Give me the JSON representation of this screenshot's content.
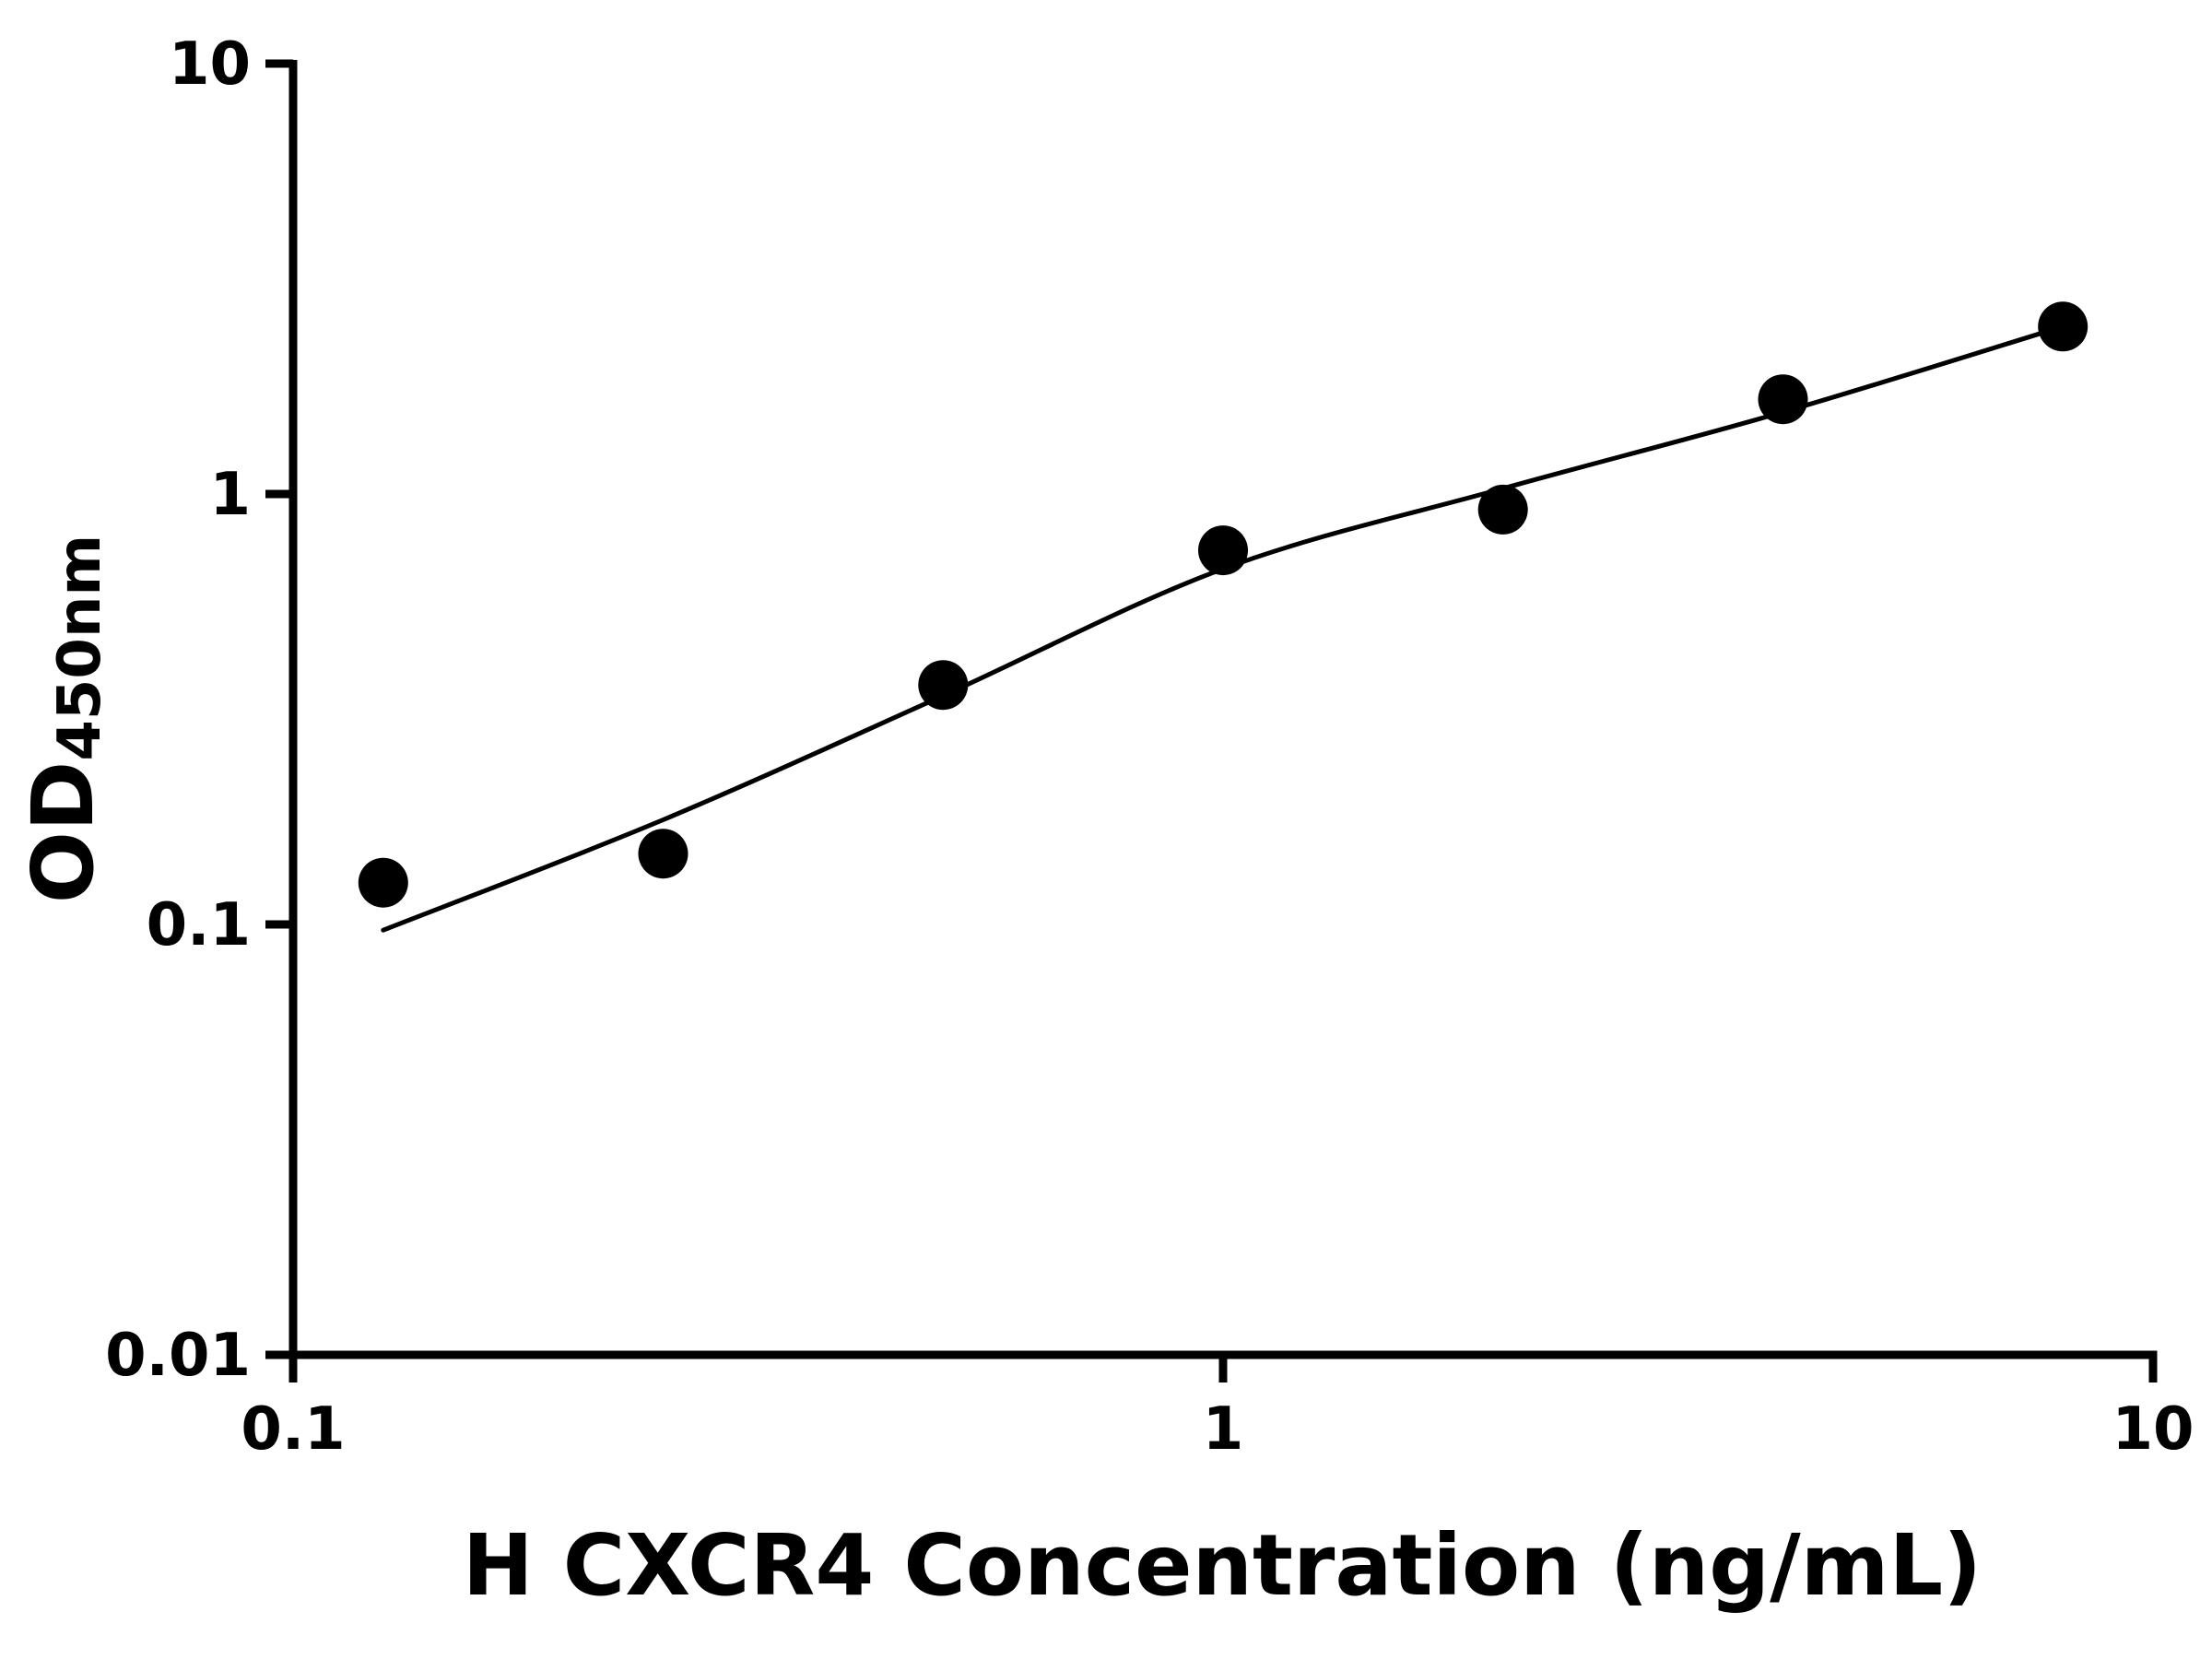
{
  "figure": {
    "kind": "ELISA standard curve plot",
    "background": "#ffffff"
  },
  "chart_data": {
    "type": "scatter",
    "title": "",
    "xlabel": "H CXCR4 Concentration (ng/mL)",
    "ylabel_main": "OD",
    "ylabel_sub": "450nm",
    "x_scale": "log",
    "y_scale": "log",
    "xlim": [
      0.1,
      10
    ],
    "ylim": [
      0.01,
      10
    ],
    "x_ticks": [
      0.1,
      1,
      10
    ],
    "x_tick_labels": [
      "0.1",
      "1",
      "10"
    ],
    "y_ticks": [
      0.01,
      0.1,
      1,
      10
    ],
    "y_tick_labels": [
      "0.01",
      "0.1",
      "1",
      "10"
    ],
    "grid": false,
    "legend": null,
    "marker_color": "#000000",
    "line_color": "#000000",
    "axis_color": "#000000",
    "points": [
      {
        "x": 0.125,
        "y": 0.125
      },
      {
        "x": 0.25,
        "y": 0.146
      },
      {
        "x": 0.5,
        "y": 0.36
      },
      {
        "x": 1,
        "y": 0.74
      },
      {
        "x": 2,
        "y": 0.92
      },
      {
        "x": 4,
        "y": 1.66
      },
      {
        "x": 8,
        "y": 2.45
      }
    ],
    "fit_curve": [
      {
        "x": 0.125,
        "y": 0.097
      },
      {
        "x": 0.25,
        "y": 0.175
      },
      {
        "x": 0.5,
        "y": 0.34
      },
      {
        "x": 1,
        "y": 0.67
      },
      {
        "x": 2,
        "y": 1.03
      },
      {
        "x": 4,
        "y": 1.55
      },
      {
        "x": 8,
        "y": 2.45
      }
    ]
  }
}
